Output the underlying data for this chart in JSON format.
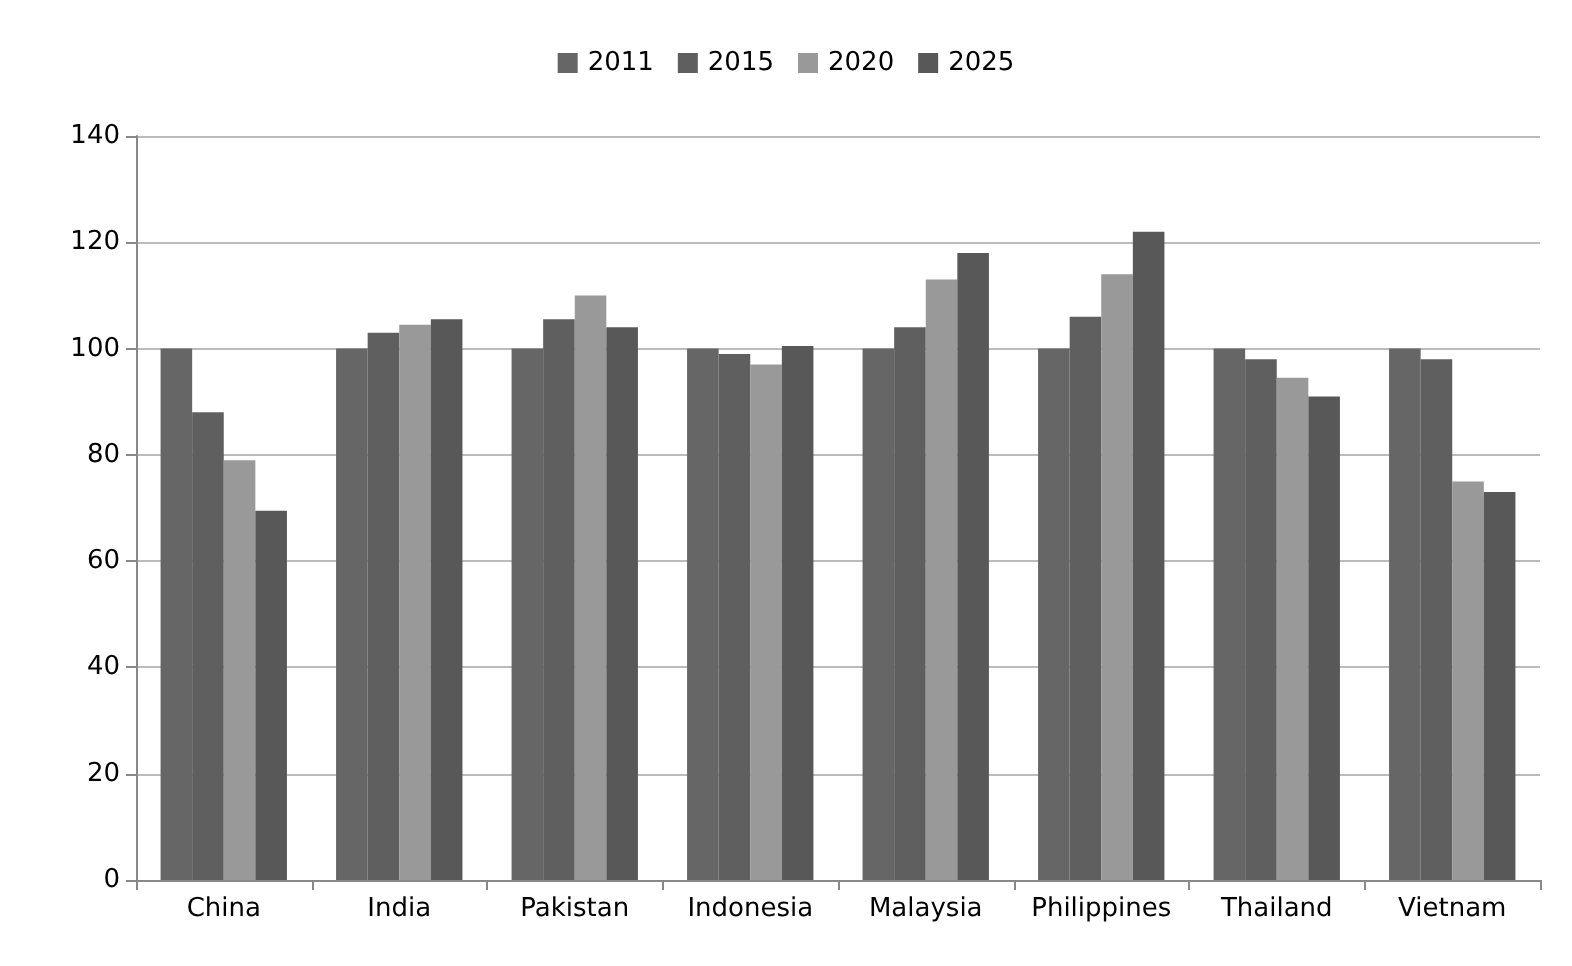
{
  "chart_data": {
    "type": "bar",
    "categories": [
      "China",
      "India",
      "Pakistan",
      "Indonesia",
      "Malaysia",
      "Philippines",
      "Thailand",
      "Vietnam"
    ],
    "series": [
      {
        "name": "2011",
        "color": "#666666",
        "values": [
          100,
          100,
          100,
          100,
          100,
          100,
          100,
          100
        ]
      },
      {
        "name": "2015",
        "color": "#5f5f5f",
        "values": [
          88,
          103,
          105.5,
          99,
          104,
          106,
          98,
          98
        ]
      },
      {
        "name": "2020",
        "color": "#999999",
        "values": [
          79,
          104.5,
          110,
          97,
          113,
          114,
          94.5,
          75
        ]
      },
      {
        "name": "2025",
        "color": "#585858",
        "values": [
          69.5,
          105.5,
          104,
          100.5,
          118,
          122,
          91,
          73
        ]
      }
    ],
    "ylim": [
      0,
      140
    ],
    "yticks": [
      0,
      20,
      40,
      60,
      80,
      100,
      120,
      140
    ],
    "grid": "y",
    "legend": "top"
  }
}
